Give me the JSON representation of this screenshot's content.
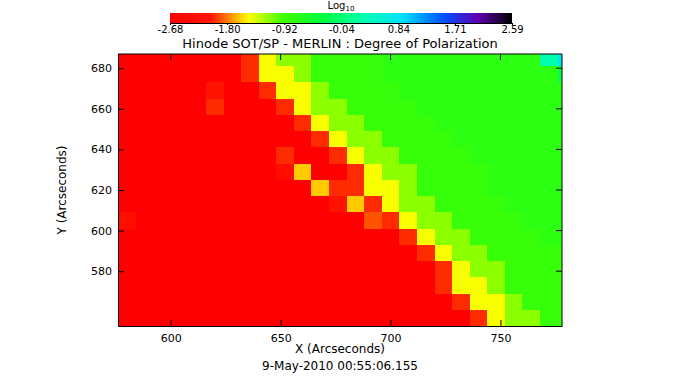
{
  "chart_data": {
    "type": "heatmap",
    "title": "Hinode SOT/SP - MERLIN : Degree of Polarization",
    "x_label": "X (Arcseconds)",
    "y_label": "Y (Arcseconds)",
    "annotation": "9-May-2010 00:55:06.155",
    "xlim": [
      576,
      778
    ],
    "ylim": [
      553,
      687
    ],
    "xticks": [
      600,
      650,
      700,
      750
    ],
    "yticks": [
      580,
      600,
      620,
      640,
      660,
      680
    ],
    "x": [
      580,
      588,
      596,
      604,
      612,
      620,
      628,
      636,
      644,
      652,
      660,
      668,
      676,
      684,
      692,
      700,
      708,
      716,
      724,
      732,
      740,
      748,
      756,
      764,
      772,
      780
    ],
    "y": [
      557,
      565,
      573,
      581,
      589,
      597,
      605,
      613,
      621,
      629,
      637,
      645,
      653,
      661,
      669,
      677,
      685
    ],
    "values": [
      [
        -2.68,
        -2.68,
        -2.68,
        -2.68,
        -2.68,
        -2.68,
        -2.68,
        -2.68,
        -2.68,
        -2.68,
        -2.68,
        -2.68,
        -2.68,
        -2.68,
        -2.68,
        -2.68,
        -2.68,
        -2.68,
        -2.68,
        -2.68,
        -2,
        -1.45,
        -1.15,
        -1.15,
        -0.85,
        -0.85
      ],
      [
        -2.68,
        -2.68,
        -2.68,
        -2.68,
        -2.68,
        -2.68,
        -2.68,
        -2.68,
        -2.68,
        -2.68,
        -2.68,
        -2.68,
        -2.68,
        -2.68,
        -2.68,
        -2.68,
        -2.68,
        -2.68,
        -2.68,
        -2,
        -1.45,
        -1.45,
        -1.15,
        -0.85,
        -0.85,
        -0.85
      ],
      [
        -2.68,
        -2.68,
        -2.68,
        -2.68,
        -2.68,
        -2.68,
        -2.68,
        -2.68,
        -2.68,
        -2.68,
        -2.68,
        -2.68,
        -2.68,
        -2.68,
        -2.68,
        -2.68,
        -2.68,
        -2.68,
        -2,
        -1.45,
        -1.45,
        -1.15,
        -0.85,
        -0.85,
        -0.85,
        -0.85
      ],
      [
        -2.68,
        -2.68,
        -2.68,
        -2.68,
        -2.68,
        -2.68,
        -2.68,
        -2.68,
        -2.68,
        -2.68,
        -2.68,
        -2.68,
        -2.68,
        -2.68,
        -2.68,
        -2.68,
        -2.68,
        -2.68,
        -2,
        -1.45,
        -1.15,
        -1.15,
        -0.85,
        -0.85,
        -0.85,
        -0.85
      ],
      [
        -2.68,
        -2.68,
        -2.68,
        -2.68,
        -2.68,
        -2.68,
        -2.68,
        -2.68,
        -2.68,
        -2.68,
        -2.68,
        -2.68,
        -2.68,
        -2.68,
        -2.68,
        -2.68,
        -2.68,
        -2,
        -1.45,
        -1.15,
        -1.15,
        -0.85,
        -0.85,
        -0.85,
        -0.85,
        -0.85
      ],
      [
        -2.68,
        -2.68,
        -2.68,
        -2.68,
        -2.68,
        -2.68,
        -2.68,
        -2.68,
        -2.68,
        -2.68,
        -2.68,
        -2.68,
        -2.68,
        -2.68,
        -2.68,
        -2.68,
        -2,
        -1.45,
        -1.15,
        -1.15,
        -0.85,
        -0.85,
        -0.85,
        -0.85,
        -0.75,
        -0.75
      ],
      [
        -2.3,
        -2.68,
        -2.68,
        -2.68,
        -2.68,
        -2.68,
        -2.68,
        -2.68,
        -2.68,
        -2.68,
        -2.68,
        -2.68,
        -2.68,
        -2.68,
        -1.9,
        -2,
        -1.45,
        -1.15,
        -1.15,
        -0.85,
        -0.85,
        -0.85,
        -0.85,
        -0.75,
        -0.75,
        -0.75
      ],
      [
        -2.68,
        -2.68,
        -2.68,
        -2.68,
        -2.68,
        -2.68,
        -2.68,
        -2.68,
        -2.68,
        -2.68,
        -2.68,
        -2.68,
        -2.2,
        -1.6,
        -2,
        -1.45,
        -1.15,
        -1.15,
        -0.85,
        -0.85,
        -0.85,
        -0.85,
        -0.75,
        -0.75,
        -0.75,
        -0.75
      ],
      [
        -2.68,
        -2.68,
        -2.68,
        -2.68,
        -2.68,
        -2.68,
        -2.68,
        -2.68,
        -2.68,
        -2.68,
        -2.68,
        -1.6,
        -2,
        -2,
        -1.45,
        -1.45,
        -1.15,
        -0.85,
        -0.85,
        -0.85,
        -0.85,
        -0.75,
        -0.75,
        -0.75,
        -0.75,
        -0.75
      ],
      [
        -2.68,
        -2.68,
        -2.68,
        -2.68,
        -2.68,
        -2.68,
        -2.68,
        -2.68,
        -2.68,
        -2.3,
        -1.6,
        -2.68,
        -2.68,
        -2,
        -1.45,
        -1.15,
        -1.15,
        -0.85,
        -0.85,
        -0.85,
        -0.85,
        -0.75,
        -0.75,
        -0.75,
        -0.75,
        -0.75
      ],
      [
        -2.68,
        -2.68,
        -2.68,
        -2.68,
        -2.68,
        -2.68,
        -2.68,
        -2.68,
        -2.68,
        -2,
        -2.68,
        -2.68,
        -2,
        -1.45,
        -1.15,
        -1.15,
        -0.85,
        -0.85,
        -0.85,
        -0.85,
        -0.75,
        -0.75,
        -0.75,
        -0.75,
        -0.75,
        -0.75
      ],
      [
        -2.68,
        -2.68,
        -2.68,
        -2.68,
        -2.68,
        -2.68,
        -2.68,
        -2.68,
        -2.68,
        -2.68,
        -2.68,
        -2,
        -1.45,
        -1.15,
        -1.15,
        -0.85,
        -0.85,
        -0.85,
        -0.85,
        -0.75,
        -0.75,
        -0.75,
        -0.75,
        -0.75,
        -0.75,
        -0.75
      ],
      [
        -2.68,
        -2.68,
        -2.68,
        -2.68,
        -2.68,
        -2.68,
        -2.68,
        -2.68,
        -2.68,
        -2.68,
        -2,
        -1.45,
        -1.15,
        -1.15,
        -0.85,
        -0.85,
        -0.85,
        -0.85,
        -0.75,
        -0.75,
        -0.75,
        -0.75,
        -0.75,
        -0.75,
        -0.75,
        -0.75
      ],
      [
        -2.68,
        -2.68,
        -2.68,
        -2.68,
        -2.68,
        -2,
        -2.68,
        -2.68,
        -2.68,
        -2,
        -1.45,
        -1.15,
        -1.15,
        -0.85,
        -0.85,
        -0.85,
        -0.85,
        -0.75,
        -0.75,
        -0.75,
        -0.75,
        -0.75,
        -0.75,
        -0.75,
        -0.75,
        -0.75
      ],
      [
        -2.68,
        -2.68,
        -2.68,
        -2.68,
        -2.68,
        -2.2,
        -2.68,
        -2.68,
        -2,
        -1.45,
        -1.45,
        -1.15,
        -0.85,
        -0.85,
        -0.85,
        -0.85,
        -0.75,
        -0.75,
        -0.75,
        -0.75,
        -0.75,
        -0.75,
        -0.75,
        -0.75,
        -0.75,
        -0.75
      ],
      [
        -2.68,
        -2.68,
        -2.68,
        -2.68,
        -2.68,
        -2.68,
        -2.68,
        -2,
        -1.45,
        -1.45,
        -1.15,
        -0.85,
        -0.85,
        -0.85,
        -0.85,
        -0.75,
        -0.75,
        -0.75,
        -0.75,
        -0.75,
        -0.75,
        -0.75,
        -0.75,
        -0.75,
        -0.75,
        -0.3
      ],
      [
        -2.68,
        -2.68,
        -2.68,
        -2.68,
        -2.68,
        -2.68,
        -2.68,
        -2,
        -1.45,
        -1.15,
        -1.15,
        -0.85,
        -0.85,
        -0.85,
        -0.85,
        -0.75,
        -0.75,
        -0.75,
        -0.75,
        -0.75,
        -0.75,
        -0.75,
        -0.75,
        -0.75,
        0.3,
        0.8
      ]
    ],
    "colorbar": {
      "label": "Log10",
      "range": [
        -2.68,
        2.59
      ],
      "ticks": [
        -2.68,
        {
          "value": -1.8,
          "label": "-1.80"
        },
        -0.92,
        -0.04,
        0.84,
        1.71,
        2.59
      ]
    }
  }
}
